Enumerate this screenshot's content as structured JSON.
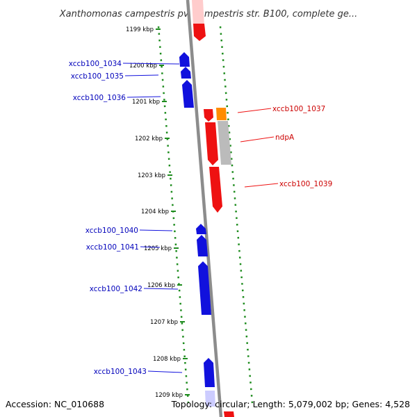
{
  "title": "Xanthomonas campestris pv. campestris str. B100, complete ge...",
  "footer": {
    "accession": "Accession: NC_010688",
    "topology": "Topology: circular; Length: 5,079,002 bp; Genes: 4,528"
  },
  "colors": {
    "backbone": "#8c8c8c",
    "dots": "#1e8c1e",
    "forward_gene": "#ee1111",
    "reverse_gene": "#1111dd",
    "highlight_gene": "#ff8c00",
    "rna_gene": "#bbbbbb",
    "forward_label": "#cc0000",
    "reverse_label": "#0000bb"
  },
  "ticks": [
    {
      "label": "1199 kbp"
    },
    {
      "label": "1200 kbp"
    },
    {
      "label": "1201 kbp"
    },
    {
      "label": "1202 kbp"
    },
    {
      "label": "1203 kbp"
    },
    {
      "label": "1204 kbp"
    },
    {
      "label": "1205 kbp"
    },
    {
      "label": "1206 kbp"
    },
    {
      "label": "1207 kbp"
    },
    {
      "label": "1208 kbp"
    },
    {
      "label": "1209 kbp"
    }
  ],
  "reverse_genes": [
    {
      "label": "xccb100_1034"
    },
    {
      "label": "xccb100_1035"
    },
    {
      "label": "xccb100_1036"
    },
    {
      "label": "xccb100_1040"
    },
    {
      "label": "xccb100_1041"
    },
    {
      "label": "xccb100_1042"
    },
    {
      "label": "xccb100_1043"
    }
  ],
  "forward_genes": [
    {
      "label": "xccb100_1037"
    },
    {
      "label": "ndpA"
    },
    {
      "label": "xccb100_1039"
    }
  ]
}
